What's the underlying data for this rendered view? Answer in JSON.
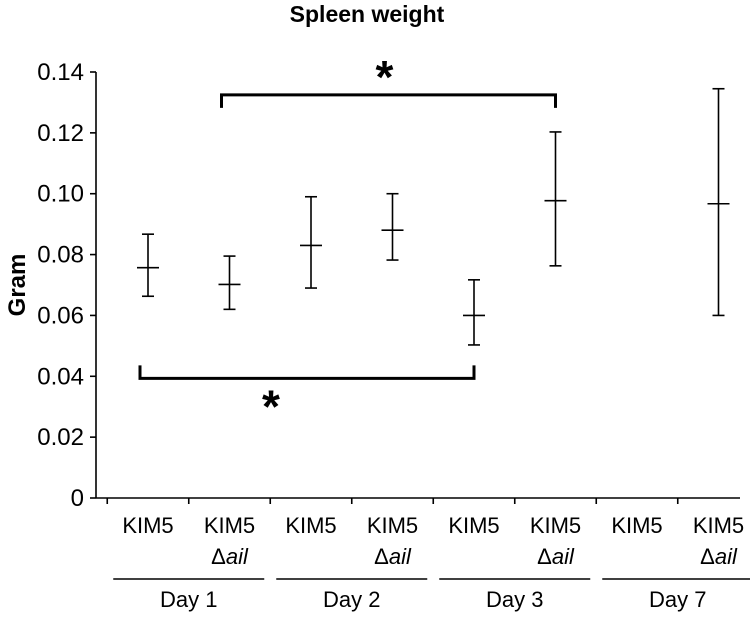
{
  "chart_data": {
    "type": "errorbar",
    "title": "Spleen weight",
    "xlabel": "",
    "ylabel": "Gram",
    "ylim": [
      0,
      0.14
    ],
    "yticks": [
      "0",
      "0.02",
      "0.04",
      "0.06",
      "0.08",
      "0.10",
      "0.12",
      "0.14"
    ],
    "grid": false,
    "categories": [
      {
        "line1": "KIM5",
        "line2_prefix": "",
        "line2_italic": ""
      },
      {
        "line1": "KIM5",
        "line2_prefix": "Δ",
        "line2_italic": "ail"
      },
      {
        "line1": "KIM5",
        "line2_prefix": "",
        "line2_italic": ""
      },
      {
        "line1": "KIM5",
        "line2_prefix": "Δ",
        "line2_italic": "ail"
      },
      {
        "line1": "KIM5",
        "line2_prefix": "",
        "line2_italic": ""
      },
      {
        "line1": "KIM5",
        "line2_prefix": "Δ",
        "line2_italic": "ail"
      },
      {
        "line1": "KIM5",
        "line2_prefix": "",
        "line2_italic": ""
      },
      {
        "line1": "KIM5",
        "line2_prefix": "Δ",
        "line2_italic": "ail"
      }
    ],
    "groups": [
      "Day 1",
      "Day 2",
      "Day 3",
      "Day 7"
    ],
    "points": [
      {
        "mean": 0.0757,
        "low": 0.0663,
        "high": 0.0867
      },
      {
        "mean": 0.0702,
        "low": 0.062,
        "high": 0.0795
      },
      {
        "mean": 0.083,
        "low": 0.069,
        "high": 0.099
      },
      {
        "mean": 0.088,
        "low": 0.0782,
        "high": 0.1
      },
      {
        "mean": 0.06,
        "low": 0.0503,
        "high": 0.0717
      },
      {
        "mean": 0.0977,
        "low": 0.0763,
        "high": 0.1203
      },
      null,
      {
        "mean": 0.0967,
        "low": 0.06,
        "high": 0.1345
      }
    ],
    "annotations": [
      {
        "text": "*",
        "from": 0,
        "to": 4,
        "y": 0.0393,
        "direction": "up"
      },
      {
        "text": "*",
        "from": 1,
        "to": 5,
        "y": 0.1325,
        "direction": "down"
      }
    ]
  }
}
